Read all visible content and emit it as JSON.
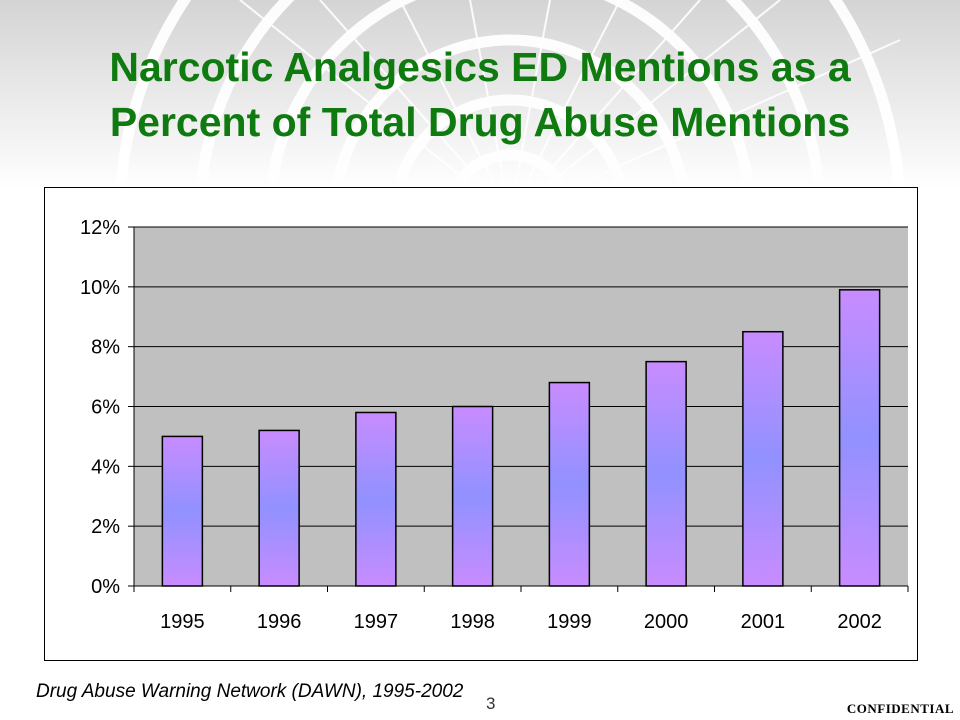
{
  "slide": {
    "title_line1": "Narcotic Analgesics ED Mentions as a",
    "title_line2": "Percent of Total Drug Abuse Mentions",
    "source": "Drug Abuse Warning Network (DAWN), 1995-2002",
    "page_number": "3",
    "confidential": "CONFIDENTIAL"
  },
  "colors": {
    "title": "#0f7a0f",
    "plot_background": "#c0c0c0",
    "bar_edge": "#8a78ff",
    "bar_center": "#9191ff",
    "bar_gradient_stops": [
      "#c88cff",
      "#9191ff",
      "#c88cff"
    ]
  },
  "chart_data": {
    "type": "bar",
    "title": "",
    "xlabel": "",
    "ylabel": "",
    "categories": [
      "1995",
      "1996",
      "1997",
      "1998",
      "1999",
      "2000",
      "2001",
      "2002"
    ],
    "values": [
      5.0,
      5.2,
      5.8,
      6.0,
      6.8,
      7.5,
      8.5,
      9.9
    ],
    "value_unit": "%",
    "ylim": [
      0,
      12
    ],
    "yticks": [
      "0%",
      "2%",
      "4%",
      "6%",
      "8%",
      "10%",
      "12%"
    ],
    "ytick_values": [
      0,
      2,
      4,
      6,
      8,
      10,
      12
    ],
    "grid": true,
    "legend": "none"
  }
}
